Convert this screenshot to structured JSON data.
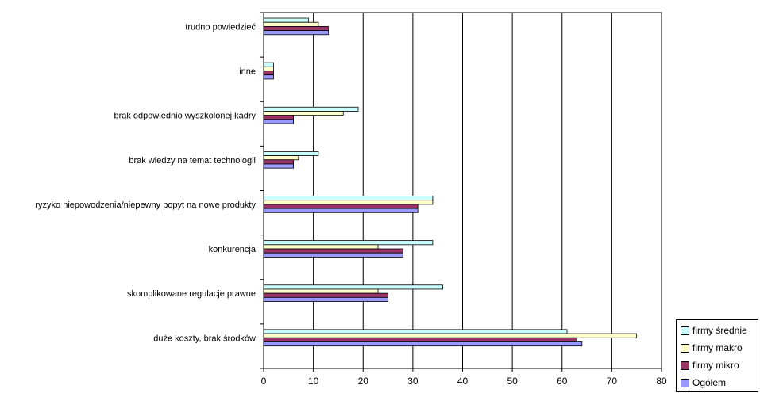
{
  "chart_data": {
    "type": "bar",
    "orientation": "horizontal",
    "title": "",
    "xlabel": "",
    "ylabel": "",
    "xlim": [
      0,
      80
    ],
    "x_ticks": [
      "0",
      "10",
      "20",
      "30",
      "40",
      "50",
      "60",
      "70",
      "80"
    ],
    "grid": "vertical",
    "legend_position": "bottom-right",
    "categories": [
      "trudno powiedzieć",
      "inne",
      "brak odpowiednio wyszkolonej kadry",
      "brak wiedzy na temat technologii",
      "ryzyko niepowodzenia/niepewny popyt na nowe produkty",
      "konkurencja",
      "skomplikowane regulacje prawne",
      "duże koszty, brak środków"
    ],
    "series": [
      {
        "name": "firmy średnie",
        "color": "#CCFFFF",
        "values": [
          9,
          2,
          19,
          11,
          34,
          34,
          36,
          61
        ]
      },
      {
        "name": "firmy makro",
        "color": "#FFFFCC",
        "values": [
          11,
          2,
          16,
          7,
          34,
          23,
          23,
          75
        ]
      },
      {
        "name": "firmy mikro",
        "color": "#993366",
        "values": [
          13,
          2,
          6,
          6,
          31,
          28,
          25,
          63
        ]
      },
      {
        "name": "Ogółem",
        "color": "#9999FF",
        "values": [
          13,
          2,
          6,
          6,
          31,
          28,
          25,
          64
        ]
      }
    ]
  }
}
